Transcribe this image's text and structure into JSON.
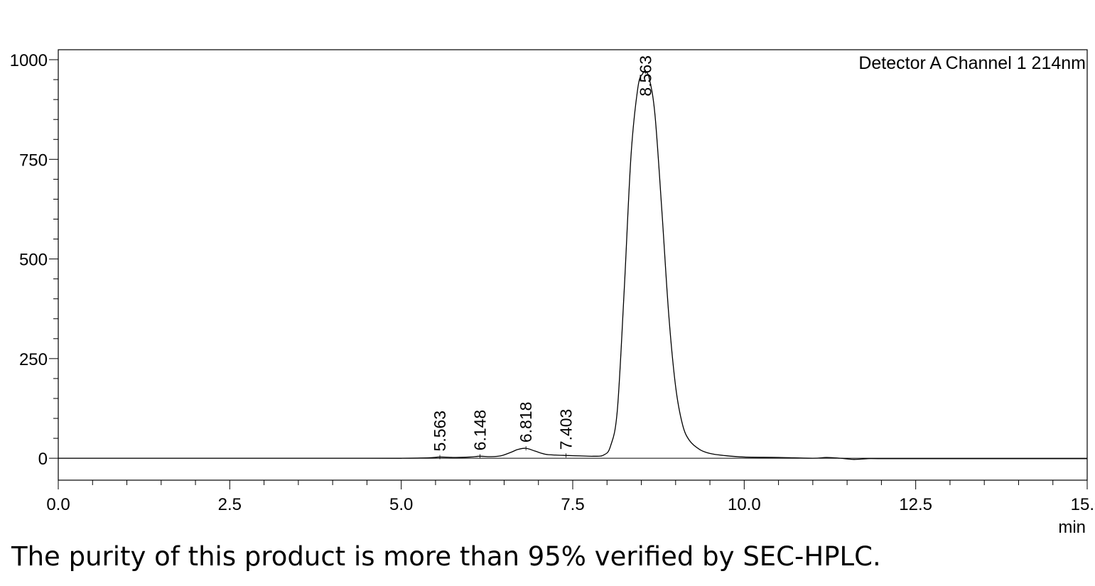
{
  "chart_data": {
    "type": "line",
    "title": "",
    "xlabel": "min",
    "ylabel": "",
    "xlim": [
      0.0,
      15.0
    ],
    "ylim": [
      -55,
      1025
    ],
    "x_ticks": [
      "0.0",
      "2.5",
      "5.0",
      "7.5",
      "10.0",
      "12.5",
      "15.0"
    ],
    "y_ticks": [
      "0",
      "250",
      "500",
      "750",
      "1000"
    ],
    "x_tick_values": [
      0,
      2.5,
      5,
      7.5,
      10,
      12.5,
      15
    ],
    "y_tick_values": [
      0,
      250,
      500,
      750,
      1000
    ],
    "x_minor_step": 0.5,
    "y_minor_step": 50,
    "legend": "Detector A Channel 1 214nm",
    "legend_position": "top-right",
    "grid": false,
    "line_color": "#000000",
    "peaks": [
      {
        "label": "5.563",
        "x": 5.563,
        "y": 3
      },
      {
        "label": "6.148",
        "x": 6.148,
        "y": 5
      },
      {
        "label": "6.818",
        "x": 6.818,
        "y": 25
      },
      {
        "label": "7.403",
        "x": 7.403,
        "y": 7
      },
      {
        "label": "8.563",
        "x": 8.563,
        "y": 970
      }
    ],
    "series": [
      {
        "x": [
          0,
          4.5,
          5.0,
          5.4,
          5.563,
          5.8,
          6.0,
          6.148,
          6.3,
          6.45,
          6.6,
          6.7,
          6.818,
          6.95,
          7.1,
          7.25,
          7.403,
          7.6,
          7.8,
          7.95,
          8.05,
          8.15,
          8.25,
          8.35,
          8.45,
          8.52,
          8.563,
          8.62,
          8.7,
          8.8,
          8.9,
          9.0,
          9.1,
          9.2,
          9.35,
          9.5,
          9.7,
          10.0,
          10.5,
          11.0,
          11.2,
          11.4,
          11.6,
          11.8,
          12.0,
          13.0,
          14.0,
          15.0
        ],
        "y": [
          0,
          0,
          0,
          1,
          3,
          2,
          3,
          5,
          4,
          6,
          15,
          22,
          25,
          18,
          10,
          8,
          7,
          6,
          5,
          8,
          30,
          120,
          420,
          760,
          930,
          965,
          970,
          950,
          860,
          620,
          360,
          180,
          85,
          45,
          22,
          12,
          7,
          3,
          2,
          0,
          2,
          0,
          -3,
          -1,
          -1,
          -1,
          -1,
          -1
        ]
      }
    ]
  },
  "caption": "The purity of this product is more than 95% verified by SEC-HPLC."
}
